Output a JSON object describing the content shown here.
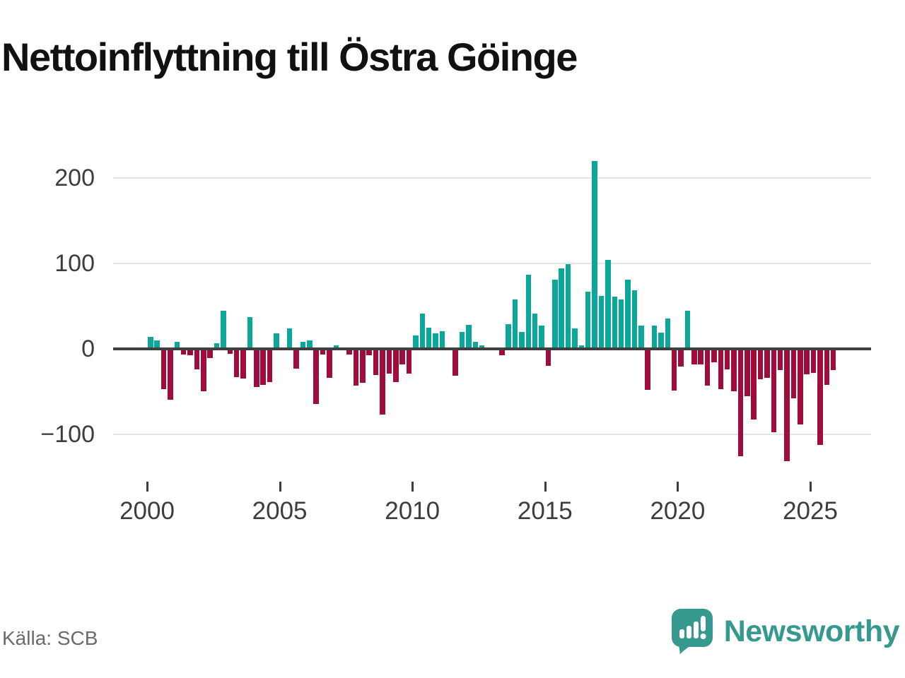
{
  "title": "Nettoinflyttning till Östra Göinge",
  "source": "Källa: SCB",
  "brand": {
    "name": "Newsworthy",
    "icon": "speech-bubble-bar-chart-icon"
  },
  "colors": {
    "positive_bar": "#0ca79b",
    "negative_bar": "#a00d3d",
    "brand_teal": "#35998f",
    "zero_line": "#3f3f3f",
    "gridline": "#e4e4e4",
    "axis_text": "#3d3d3d",
    "source_text": "#6b6b6b"
  },
  "chart_data": {
    "type": "bar",
    "title": "Nettoinflyttning till Östra Göinge",
    "frequency": "quarterly",
    "start_period": "2000 Q1",
    "end_period": "2025 Q4",
    "ylim": [
      -150,
      240
    ],
    "grid": "horizontal",
    "y_ticks": [
      {
        "value": 200,
        "label": "200"
      },
      {
        "value": 100,
        "label": "100"
      },
      {
        "value": 0,
        "label": "0"
      },
      {
        "value": -100,
        "label": "−100"
      }
    ],
    "x_ticks": [
      {
        "year": 2000,
        "label": "2000"
      },
      {
        "year": 2005,
        "label": "2005"
      },
      {
        "year": 2010,
        "label": "2010"
      },
      {
        "year": 2015,
        "label": "2015"
      },
      {
        "year": 2020,
        "label": "2020"
      },
      {
        "year": 2025,
        "label": "2025"
      }
    ],
    "values": [
      14,
      10,
      -46,
      -59,
      8,
      -6,
      -7,
      -23,
      -49,
      -10,
      7,
      45,
      -5,
      -32,
      -34,
      37,
      -44,
      -41,
      -38,
      18,
      0,
      24,
      -22,
      8,
      10,
      -64,
      -6,
      -33,
      4,
      2,
      -6,
      -42,
      -39,
      -7,
      -30,
      -76,
      -28,
      -38,
      -17,
      -28,
      16,
      41,
      25,
      18,
      21,
      0,
      -31,
      20,
      28,
      8,
      4,
      0,
      0,
      -7,
      29,
      58,
      20,
      87,
      41,
      27,
      -19,
      81,
      94,
      99,
      24,
      4,
      67,
      220,
      62,
      104,
      61,
      58,
      81,
      69,
      27,
      -47,
      27,
      19,
      36,
      -48,
      -20,
      45,
      -17,
      -17,
      -42,
      -15,
      -46,
      -23,
      -49,
      -125,
      -55,
      -82,
      -35,
      -33,
      -97,
      -24,
      -131,
      -57,
      -88,
      -29,
      -27,
      -112,
      -41,
      -24
    ]
  }
}
